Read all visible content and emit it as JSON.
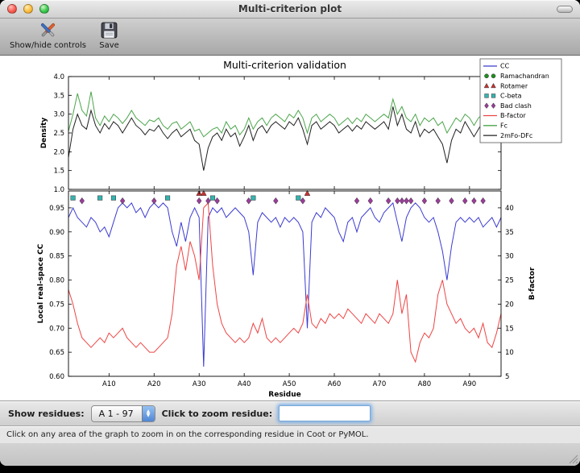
{
  "window": {
    "title": "Multi-criterion plot"
  },
  "toolbar": {
    "items": [
      {
        "label": "Show/hide controls",
        "icon": "tools-icon"
      },
      {
        "label": "Save",
        "icon": "save-icon"
      }
    ]
  },
  "controls": {
    "show_residues_label": "Show residues:",
    "residue_range_value": "A  1 - 97",
    "zoom_label": "Click to zoom residue:",
    "zoom_value": ""
  },
  "status_bar": {
    "text": "Click on any area of the graph to zoom in on the corresponding residue in Coot or PyMOL."
  },
  "chart_data": {
    "type": "line",
    "title": "Multi-criterion validation",
    "x_label": "Residue",
    "x_range": [
      1,
      97
    ],
    "x_ticks": [
      [
        10,
        "A10"
      ],
      [
        20,
        "A20"
      ],
      [
        30,
        "A30"
      ],
      [
        40,
        "A40"
      ],
      [
        50,
        "A50"
      ],
      [
        60,
        "A60"
      ],
      [
        70,
        "A70"
      ],
      [
        80,
        "A80"
      ],
      [
        90,
        "A90"
      ]
    ],
    "top_plot": {
      "y_label": "Density",
      "y_range": [
        1.0,
        4.0
      ],
      "y_ticks": [
        "4.0",
        "3.5",
        "3.0",
        "2.5",
        "2.0",
        "1.5",
        "1.0"
      ],
      "series": [
        {
          "name": "Fc",
          "color": "#4aa54a",
          "values": [
            2.55,
            3.0,
            3.55,
            3.1,
            2.95,
            3.6,
            2.9,
            2.7,
            2.95,
            2.8,
            3.0,
            2.9,
            2.75,
            2.9,
            3.1,
            2.9,
            2.8,
            2.7,
            2.85,
            2.8,
            2.9,
            2.7,
            2.6,
            2.75,
            2.8,
            2.6,
            2.7,
            2.8,
            2.55,
            2.6,
            2.4,
            2.5,
            2.6,
            2.65,
            2.5,
            2.8,
            2.6,
            2.7,
            2.45,
            2.6,
            2.9,
            2.6,
            2.8,
            2.9,
            2.7,
            2.9,
            3.0,
            2.9,
            2.8,
            3.0,
            2.9,
            3.1,
            2.9,
            2.5,
            2.9,
            3.0,
            2.8,
            2.9,
            3.0,
            2.9,
            2.7,
            2.8,
            2.9,
            2.75,
            2.9,
            2.8,
            3.0,
            2.9,
            2.8,
            2.9,
            3.0,
            2.9,
            3.4,
            3.0,
            3.2,
            2.9,
            2.8,
            3.0,
            2.7,
            2.9,
            2.8,
            2.9,
            2.7,
            2.8,
            2.5,
            2.7,
            2.9,
            2.8,
            3.0,
            2.9,
            2.7,
            2.9,
            3.0,
            2.8,
            3.3,
            3.1,
            3.35
          ]
        },
        {
          "name": "2mFo-DFc",
          "color": "#202020",
          "values": [
            1.85,
            2.6,
            3.0,
            2.7,
            2.6,
            3.1,
            2.7,
            2.5,
            2.75,
            2.6,
            2.8,
            2.7,
            2.5,
            2.7,
            2.9,
            2.7,
            2.6,
            2.45,
            2.6,
            2.55,
            2.7,
            2.5,
            2.35,
            2.5,
            2.6,
            2.4,
            2.5,
            2.6,
            2.3,
            2.2,
            1.5,
            2.1,
            2.4,
            2.5,
            2.3,
            2.6,
            2.4,
            2.5,
            2.15,
            2.4,
            2.7,
            2.3,
            2.6,
            2.7,
            2.5,
            2.7,
            2.8,
            2.7,
            2.6,
            2.8,
            2.7,
            2.9,
            2.6,
            2.2,
            2.7,
            2.8,
            2.6,
            2.7,
            2.8,
            2.7,
            2.5,
            2.6,
            2.7,
            2.55,
            2.7,
            2.6,
            2.8,
            2.7,
            2.6,
            2.7,
            2.8,
            2.6,
            3.2,
            2.7,
            3.0,
            2.6,
            2.5,
            2.8,
            2.4,
            2.6,
            2.5,
            2.6,
            2.4,
            2.2,
            1.7,
            2.3,
            2.6,
            2.5,
            2.8,
            2.6,
            2.4,
            2.6,
            2.8,
            2.5,
            3.0,
            2.8,
            3.1
          ]
        }
      ]
    },
    "bottom_plot": {
      "y_label_left": "Local real-space CC",
      "y_left_range": [
        0.6,
        0.985
      ],
      "y_left_ticks": [
        "0.95",
        "0.90",
        "0.85",
        "0.80",
        "0.75",
        "0.70",
        "0.65",
        "0.60"
      ],
      "y_label_right": "B-factor",
      "y_right_range": [
        5,
        43.5
      ],
      "y_right_ticks": [
        "40",
        "35",
        "30",
        "25",
        "20",
        "15",
        "10",
        "5"
      ],
      "series": [
        {
          "name": "CC",
          "axis": "left",
          "color": "#3b3bd1",
          "values": [
            0.93,
            0.95,
            0.93,
            0.92,
            0.91,
            0.93,
            0.92,
            0.9,
            0.91,
            0.89,
            0.92,
            0.95,
            0.96,
            0.95,
            0.96,
            0.94,
            0.95,
            0.93,
            0.95,
            0.96,
            0.95,
            0.96,
            0.95,
            0.9,
            0.87,
            0.92,
            0.88,
            0.93,
            0.95,
            0.93,
            0.62,
            0.93,
            0.95,
            0.94,
            0.95,
            0.93,
            0.94,
            0.95,
            0.94,
            0.93,
            0.9,
            0.81,
            0.92,
            0.94,
            0.93,
            0.92,
            0.93,
            0.91,
            0.93,
            0.92,
            0.93,
            0.92,
            0.9,
            0.7,
            0.92,
            0.94,
            0.93,
            0.95,
            0.94,
            0.93,
            0.9,
            0.88,
            0.92,
            0.93,
            0.9,
            0.93,
            0.94,
            0.95,
            0.93,
            0.92,
            0.94,
            0.95,
            0.96,
            0.92,
            0.88,
            0.93,
            0.95,
            0.96,
            0.95,
            0.93,
            0.92,
            0.93,
            0.9,
            0.86,
            0.8,
            0.87,
            0.92,
            0.93,
            0.92,
            0.93,
            0.92,
            0.93,
            0.91,
            0.92,
            0.93,
            0.91,
            0.93
          ]
        },
        {
          "name": "B-factor",
          "axis": "right",
          "color": "#ee4444",
          "values": [
            23,
            20,
            16,
            13,
            12,
            11,
            12,
            13,
            12,
            14,
            13,
            14,
            15,
            13,
            12,
            11,
            12,
            11,
            10,
            10,
            11,
            12,
            13,
            18,
            28,
            32,
            27,
            33,
            30,
            25,
            40,
            41,
            28,
            20,
            16,
            14,
            13,
            12,
            13,
            12,
            13,
            16,
            14,
            17,
            13,
            12,
            13,
            12,
            13,
            14,
            15,
            14,
            16,
            22,
            16,
            15,
            17,
            16,
            18,
            17,
            18,
            17,
            19,
            18,
            17,
            16,
            18,
            17,
            16,
            18,
            17,
            16,
            18,
            25,
            18,
            22,
            10,
            8,
            12,
            14,
            13,
            15,
            22,
            25,
            20,
            18,
            16,
            17,
            15,
            14,
            15,
            13,
            16,
            12,
            11,
            14,
            18
          ]
        }
      ],
      "outlier_markers": [
        {
          "name": "Ramachandran",
          "shape": "circle",
          "color": "#1f8f1f",
          "row_y": 0.976,
          "residues": []
        },
        {
          "name": "Rotamer",
          "shape": "triangle",
          "color": "#c83232",
          "row_y": 0.98,
          "residues": [
            30,
            31,
            54
          ]
        },
        {
          "name": "C-beta",
          "shape": "square",
          "color": "#35b3ae",
          "row_y": 0.9705,
          "residues": [
            2,
            8,
            11,
            23,
            33,
            42,
            52
          ]
        },
        {
          "name": "Bad clash",
          "shape": "diamond",
          "color": "#9a3d9a",
          "row_y": 0.9645,
          "residues": [
            4,
            13,
            20,
            30,
            32,
            34,
            41,
            47,
            53,
            65,
            68,
            72,
            74,
            75,
            76,
            77,
            80,
            83,
            86,
            89,
            91,
            93
          ]
        }
      ]
    },
    "legend": [
      {
        "label": "CC",
        "type": "line",
        "color": "#3b3bd1"
      },
      {
        "label": "Ramachandran",
        "type": "marker",
        "shape": "circle",
        "color": "#1f8f1f"
      },
      {
        "label": "Rotamer",
        "type": "marker",
        "shape": "triangle",
        "color": "#c83232"
      },
      {
        "label": "C-beta",
        "type": "marker",
        "shape": "square",
        "color": "#35b3ae"
      },
      {
        "label": "Bad clash",
        "type": "marker",
        "shape": "diamond",
        "color": "#9a3d9a"
      },
      {
        "label": "B-factor",
        "type": "line",
        "color": "#ee4444"
      },
      {
        "label": "Fc",
        "type": "line",
        "color": "#4aa54a"
      },
      {
        "label": "2mFo-DFc",
        "type": "line",
        "color": "#202020"
      }
    ]
  }
}
